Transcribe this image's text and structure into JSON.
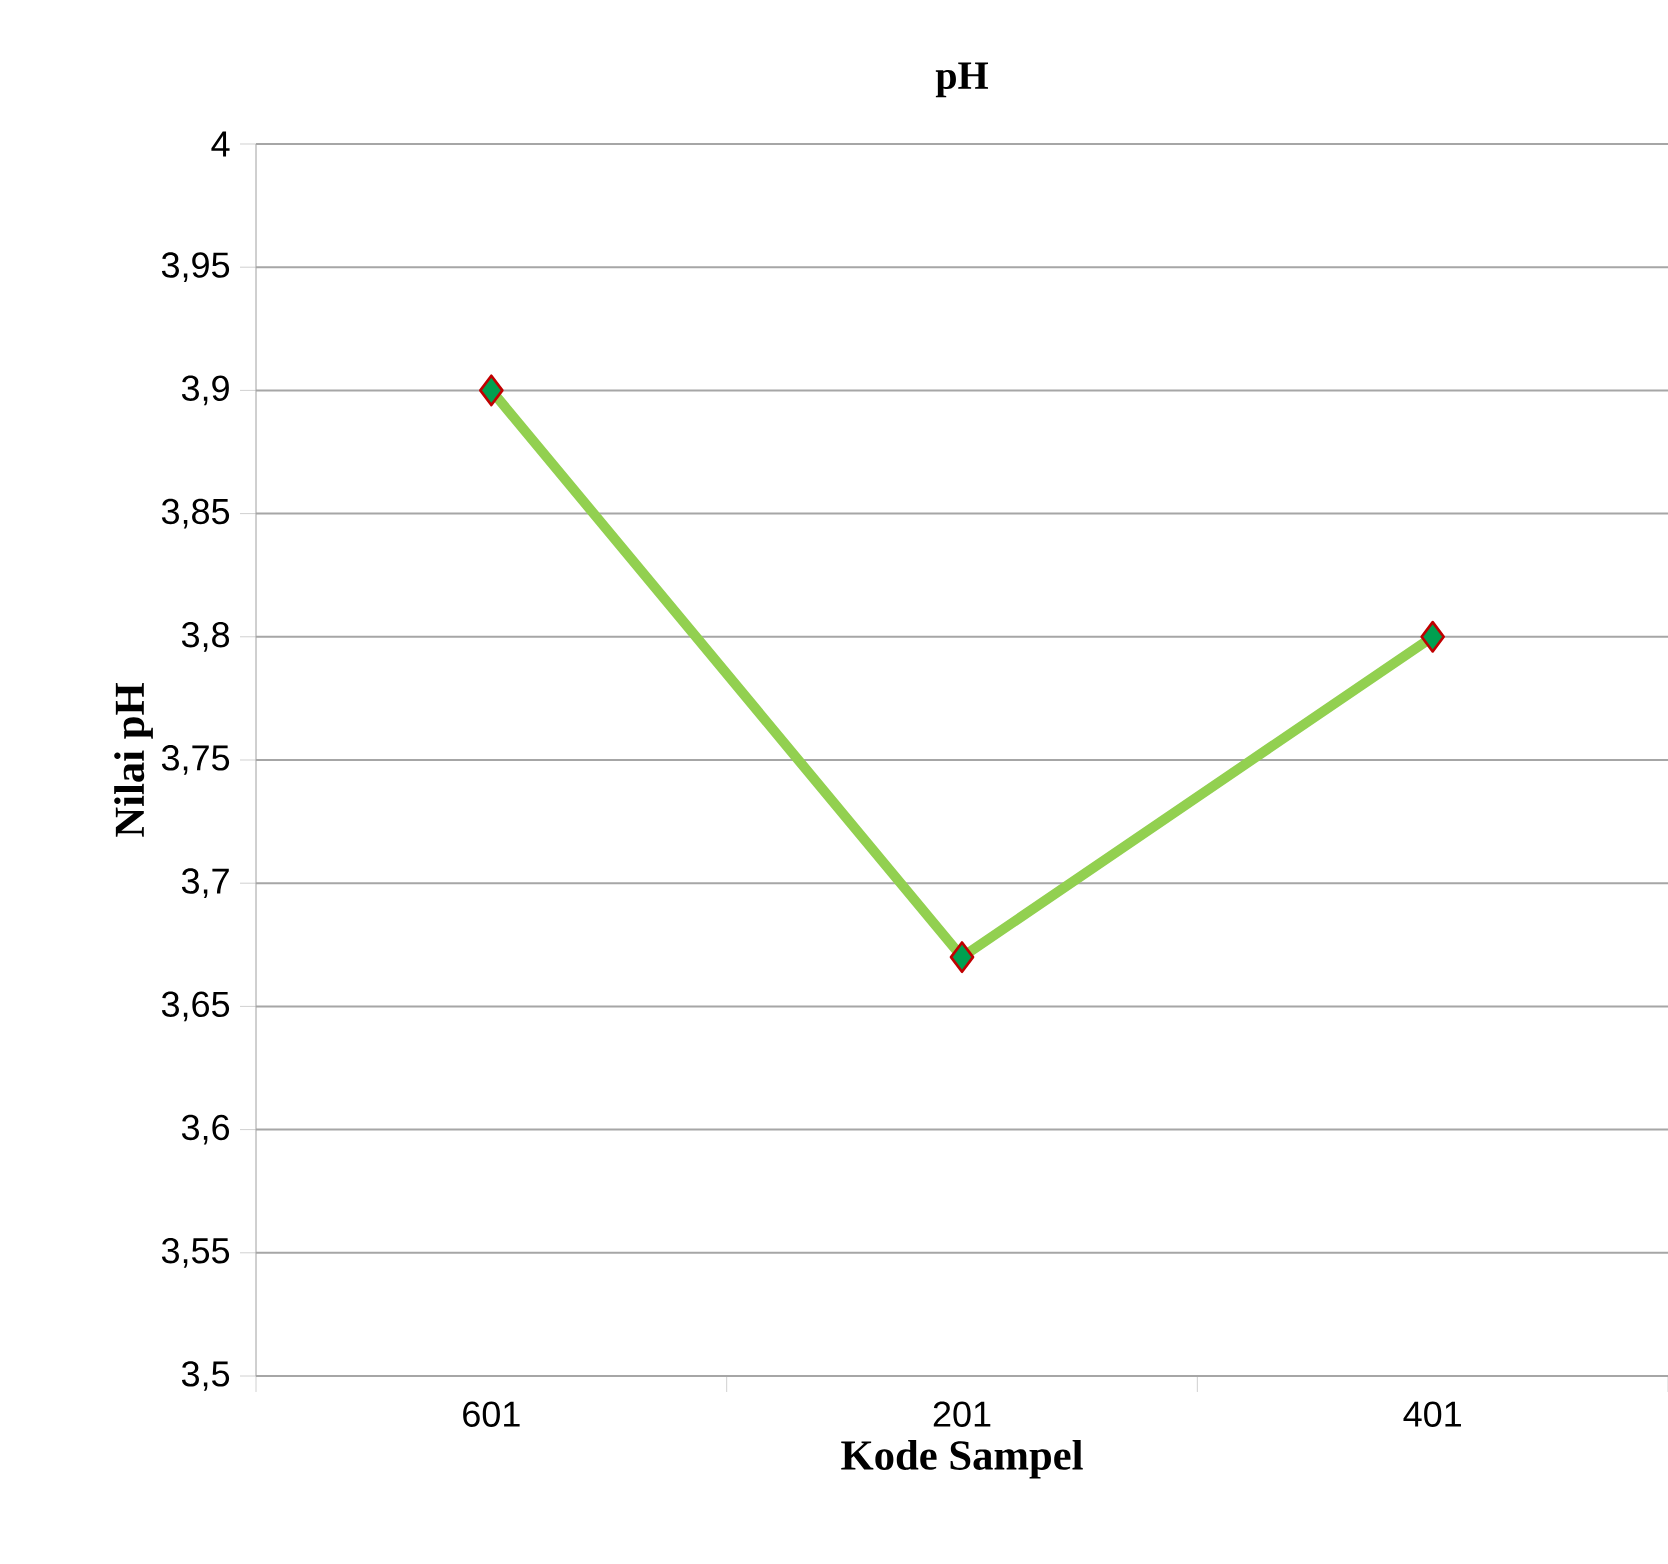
{
  "chart_data": {
    "type": "line",
    "title": "pH",
    "xlabel": "Kode Sampel",
    "ylabel": "Nilai pH",
    "categories": [
      "601",
      "201",
      "401"
    ],
    "series": [
      {
        "color": "#92d050",
        "values": [
          3.9,
          3.67,
          3.8
        ]
      }
    ],
    "ylim": [
      3.5,
      4
    ],
    "yticks": [
      {
        "value": 3.5,
        "label": "3,5"
      },
      {
        "value": 3.55,
        "label": "3,55"
      },
      {
        "value": 3.6,
        "label": "3,6"
      },
      {
        "value": 3.65,
        "label": "3,65"
      },
      {
        "value": 3.7,
        "label": "3,7"
      },
      {
        "value": 3.75,
        "label": "3,75"
      },
      {
        "value": 3.8,
        "label": "3,8"
      },
      {
        "value": 3.85,
        "label": "3,85"
      },
      {
        "value": 3.9,
        "label": "3,9"
      },
      {
        "value": 3.95,
        "label": "3,95"
      },
      4
    ],
    "grid": "y",
    "marker": "diamond",
    "line_style": "solid"
  }
}
